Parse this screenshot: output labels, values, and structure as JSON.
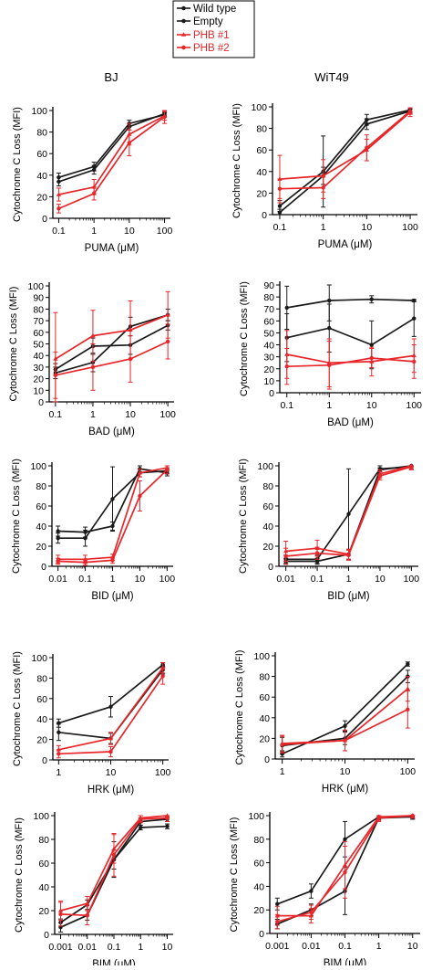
{
  "colors": {
    "black": "#1a1a1a",
    "red": "#e8262a"
  },
  "legend": {
    "items": [
      {
        "label": "Wild type",
        "color": "#1a1a1a"
      },
      {
        "label": "Empty",
        "color": "#1a1a1a"
      },
      {
        "label": "PHB #1",
        "color": "#e8262a"
      },
      {
        "label": "PHB #2",
        "color": "#e8262a"
      }
    ]
  },
  "columns": [
    "BJ",
    "WiT49"
  ],
  "chart_data": [
    {
      "type": "line",
      "cell": "BJ",
      "title": "",
      "xscale": "log",
      "xlabel": "PUMA (μM)",
      "ylabel": "Cytochrome C Loss (MFI)",
      "ylim": [
        0,
        100
      ],
      "yticks": [
        0,
        20,
        40,
        60,
        80,
        100
      ],
      "x": [
        0.1,
        1,
        10,
        100
      ],
      "xticklabels": [
        "0.1",
        "1",
        "10",
        "100"
      ],
      "series": [
        {
          "color": "black",
          "values": [
            38,
            48,
            88,
            96
          ],
          "err": [
            4,
            4,
            3,
            2
          ]
        },
        {
          "color": "black",
          "values": [
            34,
            45,
            85,
            97
          ],
          "err": [
            4,
            4,
            3,
            2
          ]
        },
        {
          "color": "red",
          "values": [
            22,
            29,
            78,
            95
          ],
          "err": [
            6,
            7,
            10,
            4
          ]
        },
        {
          "color": "red",
          "values": [
            9,
            23,
            70,
            94
          ],
          "err": [
            4,
            6,
            12,
            6
          ]
        }
      ]
    },
    {
      "type": "line",
      "cell": "WiT49",
      "title": "",
      "xscale": "log",
      "xlabel": "PUMA (μM)",
      "ylabel": "Cytochrome C Loss (MFI)",
      "ylim": [
        0,
        100
      ],
      "yticks": [
        0,
        20,
        40,
        60,
        80,
        100
      ],
      "x": [
        0.1,
        1,
        10,
        100
      ],
      "xticklabels": [
        "0.1",
        "1",
        "10",
        "100"
      ],
      "series": [
        {
          "color": "black",
          "values": [
            8,
            40,
            88,
            97
          ],
          "err": [
            5,
            33,
            5,
            2
          ]
        },
        {
          "color": "black",
          "values": [
            2,
            36,
            84,
            96
          ],
          "err": [
            3,
            8,
            5,
            2
          ]
        },
        {
          "color": "red",
          "values": [
            33,
            36,
            60,
            95
          ],
          "err": [
            22,
            15,
            10,
            4
          ]
        },
        {
          "color": "red",
          "values": [
            24,
            25,
            62,
            96
          ],
          "err": [
            9,
            10,
            12,
            3
          ]
        }
      ]
    },
    {
      "type": "line",
      "cell": "BJ",
      "title": "",
      "xscale": "log",
      "xlabel": "BAD (μM)",
      "ylabel": "Cytochrome C Loss (MFI)",
      "ylim": [
        0,
        100
      ],
      "yticks": [
        0,
        10,
        20,
        30,
        40,
        50,
        60,
        70,
        80,
        90,
        100
      ],
      "x": [
        0.1,
        1,
        10,
        100
      ],
      "xticklabels": [
        "0.1",
        "1",
        "10",
        "100"
      ],
      "series": [
        {
          "color": "black",
          "values": [
            28,
            48,
            49,
            66
          ],
          "err": [
            5,
            7,
            8,
            4
          ]
        },
        {
          "color": "black",
          "values": [
            25,
            34,
            65,
            75
          ],
          "err": [
            5,
            8,
            8,
            5
          ]
        },
        {
          "color": "red",
          "values": [
            37,
            57,
            62,
            75
          ],
          "err": [
            40,
            22,
            25,
            20
          ]
        },
        {
          "color": "red",
          "values": [
            23,
            30,
            37,
            52
          ],
          "err": [
            20,
            20,
            20,
            15
          ]
        }
      ]
    },
    {
      "type": "line",
      "cell": "WiT49",
      "title": "",
      "xscale": "log",
      "xlabel": "BAD (μM)",
      "ylabel": "Cytochrome C Loss (MFI)",
      "ylim": [
        0,
        90
      ],
      "yticks": [
        0,
        10,
        20,
        30,
        40,
        50,
        60,
        70,
        80,
        90
      ],
      "x": [
        0.1,
        1,
        10,
        100
      ],
      "xticklabels": [
        "0.1",
        "1",
        "10",
        "100"
      ],
      "series": [
        {
          "color": "black",
          "values": [
            71,
            77,
            78,
            77
          ],
          "err": [
            18,
            17,
            3,
            1
          ]
        },
        {
          "color": "black",
          "values": [
            46,
            54,
            40,
            62
          ],
          "err": [
            20,
            20,
            20,
            15
          ]
        },
        {
          "color": "red",
          "values": [
            32,
            25,
            26,
            31
          ],
          "err": [
            20,
            20,
            12,
            14
          ]
        },
        {
          "color": "red",
          "values": [
            22,
            23,
            29,
            26
          ],
          "err": [
            15,
            20,
            8,
            14
          ]
        }
      ]
    },
    {
      "type": "line",
      "cell": "BJ",
      "title": "",
      "xscale": "log",
      "xlabel": "BID (μM)",
      "ylabel": "Cytochrome C Loss (MFI)",
      "ylim": [
        0,
        100
      ],
      "yticks": [
        0,
        20,
        40,
        60,
        80,
        100
      ],
      "x": [
        0.01,
        0.1,
        1,
        10,
        100
      ],
      "xticklabels": [
        "0.01",
        "0.1",
        "1",
        "10",
        "100"
      ],
      "series": [
        {
          "color": "black",
          "values": [
            35,
            34,
            40,
            97,
            93
          ],
          "err": [
            5,
            5,
            4,
            3,
            3
          ]
        },
        {
          "color": "black",
          "values": [
            28,
            28,
            67,
            93,
            95
          ],
          "err": [
            5,
            8,
            32,
            4,
            3
          ]
        },
        {
          "color": "red",
          "values": [
            7,
            7,
            9,
            93,
            98
          ],
          "err": [
            4,
            4,
            3,
            4,
            2
          ]
        },
        {
          "color": "red",
          "values": [
            5,
            4,
            6,
            70,
            96
          ],
          "err": [
            3,
            3,
            3,
            15,
            4
          ]
        }
      ]
    },
    {
      "type": "line",
      "cell": "WiT49",
      "title": "",
      "xscale": "log",
      "xlabel": "BID (μM)",
      "ylabel": "Cytochrome C Loss (MFI)",
      "ylim": [
        0,
        100
      ],
      "yticks": [
        0,
        20,
        40,
        60,
        80,
        100
      ],
      "x": [
        0.01,
        0.1,
        1,
        10,
        100
      ],
      "xticklabels": [
        "0.01",
        "0.1",
        "1",
        "10",
        "100"
      ],
      "series": [
        {
          "color": "black",
          "values": [
            7,
            7,
            52,
            97,
            99
          ],
          "err": [
            4,
            4,
            45,
            3,
            2
          ]
        },
        {
          "color": "black",
          "values": [
            5,
            5,
            12,
            96,
            100
          ],
          "err": [
            3,
            3,
            5,
            2,
            1
          ]
        },
        {
          "color": "red",
          "values": [
            15,
            18,
            12,
            92,
            100
          ],
          "err": [
            10,
            8,
            5,
            4,
            3
          ]
        },
        {
          "color": "red",
          "values": [
            10,
            13,
            11,
            90,
            99
          ],
          "err": [
            8,
            6,
            5,
            4,
            3
          ]
        }
      ]
    },
    {
      "type": "line",
      "cell": "BJ",
      "title": "",
      "xscale": "log",
      "xlabel": "HRK (μM)",
      "ylabel": "Cytochrome C Loss (MFI)",
      "ylim": [
        0,
        100
      ],
      "yticks": [
        0,
        20,
        40,
        60,
        80,
        100
      ],
      "x": [
        1,
        10,
        100
      ],
      "xticklabels": [
        "1",
        "10",
        "100"
      ],
      "series": [
        {
          "color": "black",
          "values": [
            36,
            52,
            93
          ],
          "err": [
            4,
            10,
            2
          ]
        },
        {
          "color": "black",
          "values": [
            27,
            21,
            88
          ],
          "err": [
            8,
            5,
            4
          ]
        },
        {
          "color": "red",
          "values": [
            10,
            21,
            90
          ],
          "err": [
            4,
            6,
            5
          ]
        },
        {
          "color": "red",
          "values": [
            6,
            8,
            82
          ],
          "err": [
            4,
            5,
            8
          ]
        }
      ]
    },
    {
      "type": "line",
      "cell": "WiT49",
      "title": "",
      "xscale": "log",
      "xlabel": "HRK (μM)",
      "ylabel": "Cytochrome C Loss (MFI)",
      "ylim": [
        0,
        100
      ],
      "yticks": [
        0,
        20,
        40,
        60,
        80,
        100
      ],
      "x": [
        1,
        10,
        100
      ],
      "xticklabels": [
        "1",
        "10",
        "100"
      ],
      "series": [
        {
          "color": "black",
          "values": [
            5,
            32,
            92
          ],
          "err": [
            3,
            5,
            2
          ]
        },
        {
          "color": "black",
          "values": [
            13,
            20,
            80
          ],
          "err": [
            8,
            6,
            6
          ]
        },
        {
          "color": "red",
          "values": [
            15,
            18,
            68
          ],
          "err": [
            8,
            10,
            12
          ]
        },
        {
          "color": "red",
          "values": [
            14,
            18,
            48
          ],
          "err": [
            8,
            10,
            18
          ]
        }
      ]
    },
    {
      "type": "line",
      "cell": "BJ",
      "title": "",
      "xscale": "log",
      "xlabel": "BIM (μM)",
      "ylabel": "Cytochrome C Loss (MFI)",
      "ylim": [
        0,
        100
      ],
      "yticks": [
        0,
        20,
        40,
        60,
        80,
        100
      ],
      "x": [
        0.001,
        0.01,
        0.1,
        1,
        10
      ],
      "xticklabels": [
        "0.001",
        "0.01",
        "0.1",
        "1",
        "10"
      ],
      "series": [
        {
          "color": "black",
          "values": [
            10,
            25,
            63,
            90,
            91
          ],
          "err": [
            3,
            4,
            8,
            2,
            2
          ]
        },
        {
          "color": "black",
          "values": [
            6,
            16,
            63,
            95,
            97
          ],
          "err": [
            4,
            4,
            15,
            3,
            2
          ]
        },
        {
          "color": "red",
          "values": [
            20,
            26,
            72,
            98,
            100
          ],
          "err": [
            8,
            6,
            12,
            3,
            2
          ]
        },
        {
          "color": "red",
          "values": [
            17,
            16,
            67,
            97,
            98
          ],
          "err": [
            10,
            8,
            18,
            3,
            3
          ]
        }
      ]
    },
    {
      "type": "line",
      "cell": "WiT49",
      "title": "",
      "xscale": "log",
      "xlabel": "BIM (μM)",
      "ylabel": "Cytochrome C Loss (MFI)",
      "ylim": [
        0,
        100
      ],
      "yticks": [
        0,
        20,
        40,
        60,
        80,
        100
      ],
      "x": [
        0.001,
        0.01,
        0.1,
        1,
        10
      ],
      "xticklabels": [
        "0.001",
        "0.01",
        "0.1",
        "1",
        "10"
      ],
      "series": [
        {
          "color": "black",
          "values": [
            25,
            36,
            80,
            99,
            99
          ],
          "err": [
            5,
            6,
            15,
            2,
            2
          ]
        },
        {
          "color": "black",
          "values": [
            8,
            20,
            36,
            98,
            99
          ],
          "err": [
            4,
            5,
            20,
            2,
            2
          ]
        },
        {
          "color": "red",
          "values": [
            15,
            15,
            58,
            99,
            100
          ],
          "err": [
            8,
            6,
            20,
            3,
            2
          ]
        },
        {
          "color": "red",
          "values": [
            10,
            18,
            52,
            98,
            100
          ],
          "err": [
            6,
            6,
            22,
            3,
            2
          ]
        }
      ]
    }
  ]
}
